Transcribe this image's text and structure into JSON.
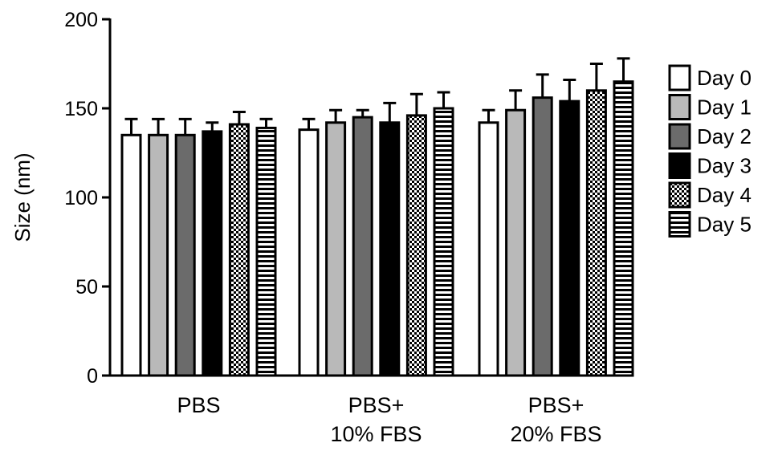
{
  "chart_data": {
    "type": "bar",
    "title": "",
    "xlabel": "",
    "ylabel": "Size (nm)",
    "ylim": [
      0,
      200
    ],
    "yticks": [
      0,
      50,
      100,
      150,
      200
    ],
    "grid": false,
    "legend_position": "right",
    "categories": [
      {
        "lines": [
          "PBS"
        ]
      },
      {
        "lines": [
          "PBS+",
          "10% FBS"
        ]
      },
      {
        "lines": [
          "PBS+",
          "20% FBS"
        ]
      }
    ],
    "series": [
      {
        "name": "Day 0",
        "pattern": "white",
        "values": [
          135,
          138,
          142
        ],
        "errors": [
          9,
          6,
          7
        ]
      },
      {
        "name": "Day 1",
        "pattern": "lightgray",
        "values": [
          135,
          142,
          149
        ],
        "errors": [
          9,
          7,
          11
        ]
      },
      {
        "name": "Day 2",
        "pattern": "darkgray",
        "values": [
          135,
          145,
          156
        ],
        "errors": [
          9,
          4,
          13
        ]
      },
      {
        "name": "Day 3",
        "pattern": "black",
        "values": [
          137,
          142,
          154
        ],
        "errors": [
          5,
          11,
          12
        ]
      },
      {
        "name": "Day 4",
        "pattern": "checker",
        "values": [
          141,
          146,
          160
        ],
        "errors": [
          7,
          12,
          15
        ]
      },
      {
        "name": "Day 5",
        "pattern": "hstripes",
        "values": [
          139,
          150,
          165
        ],
        "errors": [
          5,
          9,
          13
        ]
      }
    ],
    "colors": {
      "lightgray": "#b9b9b9",
      "darkgray": "#6b6b6b",
      "black": "#000000",
      "white": "#ffffff"
    }
  }
}
